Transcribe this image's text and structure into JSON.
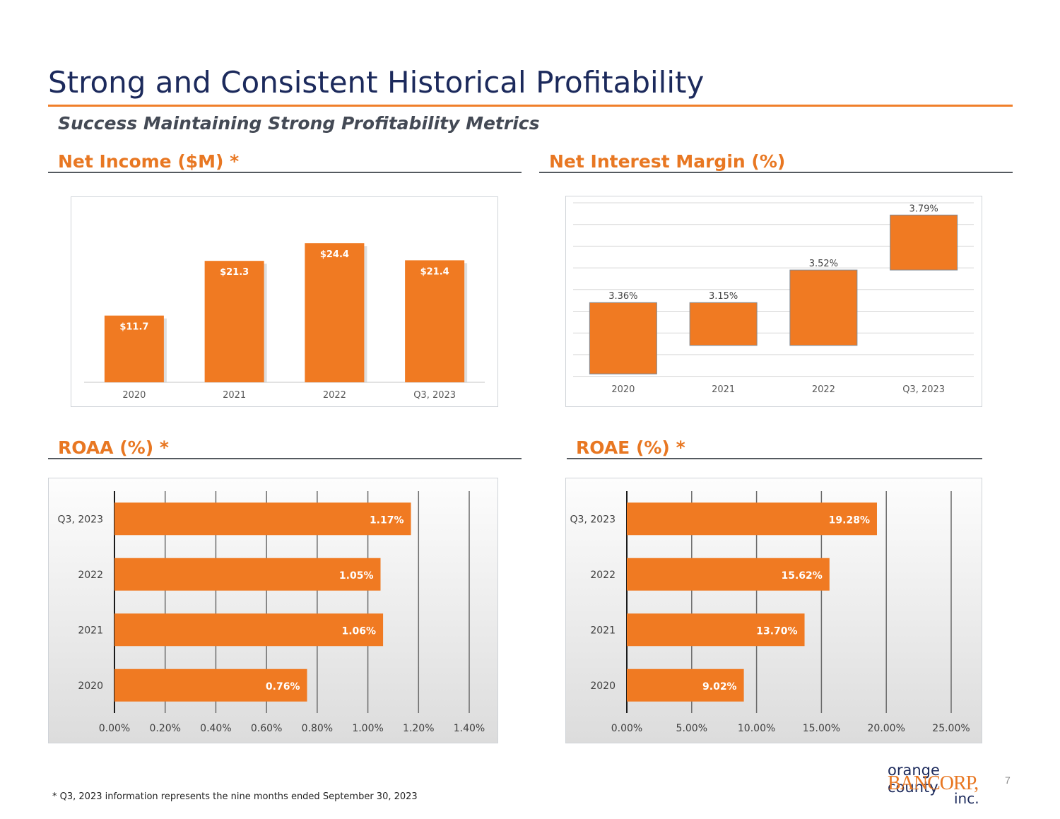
{
  "slide": {
    "title": "Strong and Consistent Historical Profitability",
    "subtitle": "Success Maintaining Strong Profitability Metrics",
    "footnote": "*  Q3, 2023 information represents the nine months ended September 30, 2023",
    "page_number": "7",
    "logo": {
      "line1": "orange county",
      "line2": "BANCORP,",
      "line3": "inc."
    }
  },
  "colors": {
    "bar": "#f07a22",
    "title": "#1c2a5c",
    "section": "#e87722",
    "rule": "#f07f2a"
  },
  "chart_data": [
    {
      "type": "bar",
      "title": "Net Income ($M) *",
      "categories": [
        "2020",
        "2021",
        "2022",
        "Q3, 2023"
      ],
      "values": [
        11.7,
        21.3,
        24.4,
        21.4
      ],
      "data_labels": [
        "$11.7",
        "$21.3",
        "$24.4",
        "$21.4"
      ],
      "ylim": [
        0,
        30
      ],
      "grid": false
    },
    {
      "type": "bar",
      "title": "Net Interest Margin (%)",
      "categories": [
        "2020",
        "2021",
        "2022",
        "Q3, 2023"
      ],
      "values": [
        3.36,
        3.15,
        3.52,
        3.79
      ],
      "data_labels": [
        "3.36%",
        "3.15%",
        "3.52%",
        "3.79%"
      ],
      "grid": true
    },
    {
      "type": "bar",
      "orientation": "horizontal",
      "title": "ROAA (%) *",
      "categories": [
        "Q3, 2023",
        "2022",
        "2021",
        "2020"
      ],
      "values": [
        1.17,
        1.05,
        1.06,
        0.76
      ],
      "data_labels": [
        "1.17%",
        "1.05%",
        "1.06%",
        "0.76%"
      ],
      "xticks": [
        "0.00%",
        "0.20%",
        "0.40%",
        "0.60%",
        "0.80%",
        "1.00%",
        "1.20%",
        "1.40%"
      ],
      "xlim": [
        0,
        1.4
      ],
      "grid": true
    },
    {
      "type": "bar",
      "orientation": "horizontal",
      "title": "ROAE (%) *",
      "categories": [
        "Q3, 2023",
        "2022",
        "2021",
        "2020"
      ],
      "values": [
        19.28,
        15.62,
        13.7,
        9.02
      ],
      "data_labels": [
        "19.28%",
        "15.62%",
        "13.70%",
        "9.02%"
      ],
      "xticks": [
        "0.00%",
        "5.00%",
        "10.00%",
        "15.00%",
        "20.00%",
        "25.00%"
      ],
      "xlim": [
        0,
        25
      ],
      "grid": true
    }
  ]
}
